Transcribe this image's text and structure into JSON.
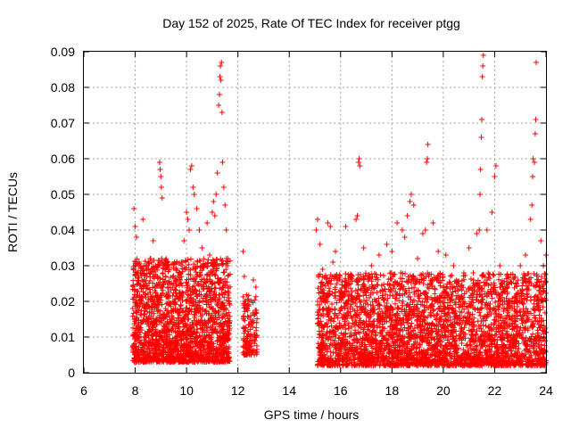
{
  "chart_data": {
    "type": "scatter",
    "title": "Day 152 of 2025, Rate Of TEC Index for receiver ptgg",
    "xlabel": "GPS time / hours",
    "ylabel": "ROTI / TECUs",
    "xlim": [
      6,
      24
    ],
    "ylim": [
      0,
      0.09
    ],
    "xticks": [
      "6",
      "8",
      "10",
      "12",
      "14",
      "16",
      "18",
      "20",
      "22",
      "24"
    ],
    "yticks": [
      "0",
      "0.01",
      "0.02",
      "0.03",
      "0.04",
      "0.05",
      "0.06",
      "0.07",
      "0.08",
      "0.09"
    ],
    "grid": true,
    "marker": "+",
    "color": "#ff0000",
    "series": [
      {
        "values": [
          [
            7.95,
            0.046
          ],
          [
            8.0,
            0.041
          ],
          [
            8.05,
            0.038
          ],
          [
            8.15,
            0.031
          ],
          [
            8.25,
            0.028
          ],
          [
            8.3,
            0.043
          ],
          [
            8.4,
            0.025
          ],
          [
            8.5,
            0.022
          ],
          [
            8.6,
            0.032
          ],
          [
            8.7,
            0.037
          ],
          [
            8.75,
            0.02
          ],
          [
            8.85,
            0.027
          ],
          [
            8.95,
            0.059
          ],
          [
            8.97,
            0.057
          ],
          [
            9.0,
            0.055
          ],
          [
            9.02,
            0.052
          ],
          [
            9.05,
            0.049
          ],
          [
            9.1,
            0.03
          ],
          [
            9.2,
            0.022
          ],
          [
            9.3,
            0.019
          ],
          [
            9.4,
            0.017
          ],
          [
            9.5,
            0.025
          ],
          [
            9.6,
            0.026
          ],
          [
            9.7,
            0.028
          ],
          [
            9.8,
            0.031
          ],
          [
            9.9,
            0.037
          ],
          [
            10.0,
            0.045
          ],
          [
            10.05,
            0.043
          ],
          [
            10.1,
            0.04
          ],
          [
            10.15,
            0.057
          ],
          [
            10.2,
            0.058
          ],
          [
            10.25,
            0.052
          ],
          [
            10.3,
            0.05
          ],
          [
            10.4,
            0.046
          ],
          [
            10.5,
            0.04
          ],
          [
            10.6,
            0.035
          ],
          [
            10.7,
            0.03
          ],
          [
            10.8,
            0.042
          ],
          [
            10.9,
            0.033
          ],
          [
            11.0,
            0.045
          ],
          [
            11.05,
            0.048
          ],
          [
            11.1,
            0.044
          ],
          [
            11.15,
            0.05
          ],
          [
            11.2,
            0.056
          ],
          [
            11.25,
            0.075
          ],
          [
            11.28,
            0.078
          ],
          [
            11.3,
            0.083
          ],
          [
            11.32,
            0.086
          ],
          [
            11.34,
            0.082
          ],
          [
            11.36,
            0.087
          ],
          [
            11.38,
            0.073
          ],
          [
            11.4,
            0.059
          ],
          [
            11.45,
            0.052
          ],
          [
            11.5,
            0.047
          ],
          [
            11.55,
            0.04
          ],
          [
            11.6,
            0.03
          ],
          [
            12.2,
            0.034
          ],
          [
            12.25,
            0.027
          ],
          [
            12.3,
            0.02
          ],
          [
            12.5,
            0.016
          ],
          [
            12.6,
            0.026
          ],
          [
            12.7,
            0.024
          ],
          [
            15.05,
            0.04
          ],
          [
            15.1,
            0.043
          ],
          [
            15.2,
            0.036
          ],
          [
            15.3,
            0.029
          ],
          [
            15.5,
            0.042
          ],
          [
            15.6,
            0.041
          ],
          [
            15.7,
            0.031
          ],
          [
            15.8,
            0.034
          ],
          [
            16.0,
            0.023
          ],
          [
            16.2,
            0.041
          ],
          [
            16.3,
            0.026
          ],
          [
            16.6,
            0.043
          ],
          [
            16.65,
            0.044
          ],
          [
            16.7,
            0.059
          ],
          [
            16.72,
            0.06
          ],
          [
            16.75,
            0.058
          ],
          [
            16.9,
            0.035
          ],
          [
            17.2,
            0.03
          ],
          [
            17.5,
            0.033
          ],
          [
            17.8,
            0.036
          ],
          [
            18.0,
            0.034
          ],
          [
            18.2,
            0.042
          ],
          [
            18.4,
            0.04
          ],
          [
            18.5,
            0.038
          ],
          [
            18.6,
            0.044
          ],
          [
            18.7,
            0.048
          ],
          [
            18.75,
            0.05
          ],
          [
            18.85,
            0.047
          ],
          [
            19.0,
            0.032
          ],
          [
            19.2,
            0.039
          ],
          [
            19.3,
            0.04
          ],
          [
            19.35,
            0.059
          ],
          [
            19.38,
            0.06
          ],
          [
            19.4,
            0.064
          ],
          [
            19.6,
            0.042
          ],
          [
            19.8,
            0.034
          ],
          [
            20.1,
            0.033
          ],
          [
            20.4,
            0.03
          ],
          [
            20.6,
            0.025
          ],
          [
            20.8,
            0.028
          ],
          [
            21.0,
            0.035
          ],
          [
            21.3,
            0.039
          ],
          [
            21.4,
            0.04
          ],
          [
            21.43,
            0.05
          ],
          [
            21.45,
            0.057
          ],
          [
            21.48,
            0.066
          ],
          [
            21.5,
            0.071
          ],
          [
            21.52,
            0.083
          ],
          [
            21.54,
            0.086
          ],
          [
            21.56,
            0.089
          ],
          [
            21.7,
            0.04
          ],
          [
            21.9,
            0.045
          ],
          [
            22.0,
            0.055
          ],
          [
            22.05,
            0.058
          ],
          [
            22.2,
            0.03
          ],
          [
            22.5,
            0.024
          ],
          [
            22.8,
            0.027
          ],
          [
            23.0,
            0.03
          ],
          [
            23.2,
            0.033
          ],
          [
            23.4,
            0.043
          ],
          [
            23.45,
            0.047
          ],
          [
            23.48,
            0.055
          ],
          [
            23.5,
            0.06
          ],
          [
            23.55,
            0.059
          ],
          [
            23.58,
            0.067
          ],
          [
            23.6,
            0.071
          ],
          [
            23.62,
            0.087
          ],
          [
            23.8,
            0.037
          ],
          [
            23.9,
            0.03
          ],
          [
            24.0,
            0.033
          ]
        ]
      }
    ],
    "dense_bands": [
      {
        "x": [
          7.9,
          11.7
        ],
        "ymin": 0.003,
        "ymax": 0.032,
        "count": 1900
      },
      {
        "x": [
          12.2,
          12.75
        ],
        "ymin": 0.005,
        "ymax": 0.022,
        "count": 140
      },
      {
        "x": [
          15.1,
          24.0
        ],
        "ymin": 0.002,
        "ymax": 0.028,
        "count": 3400
      }
    ]
  }
}
